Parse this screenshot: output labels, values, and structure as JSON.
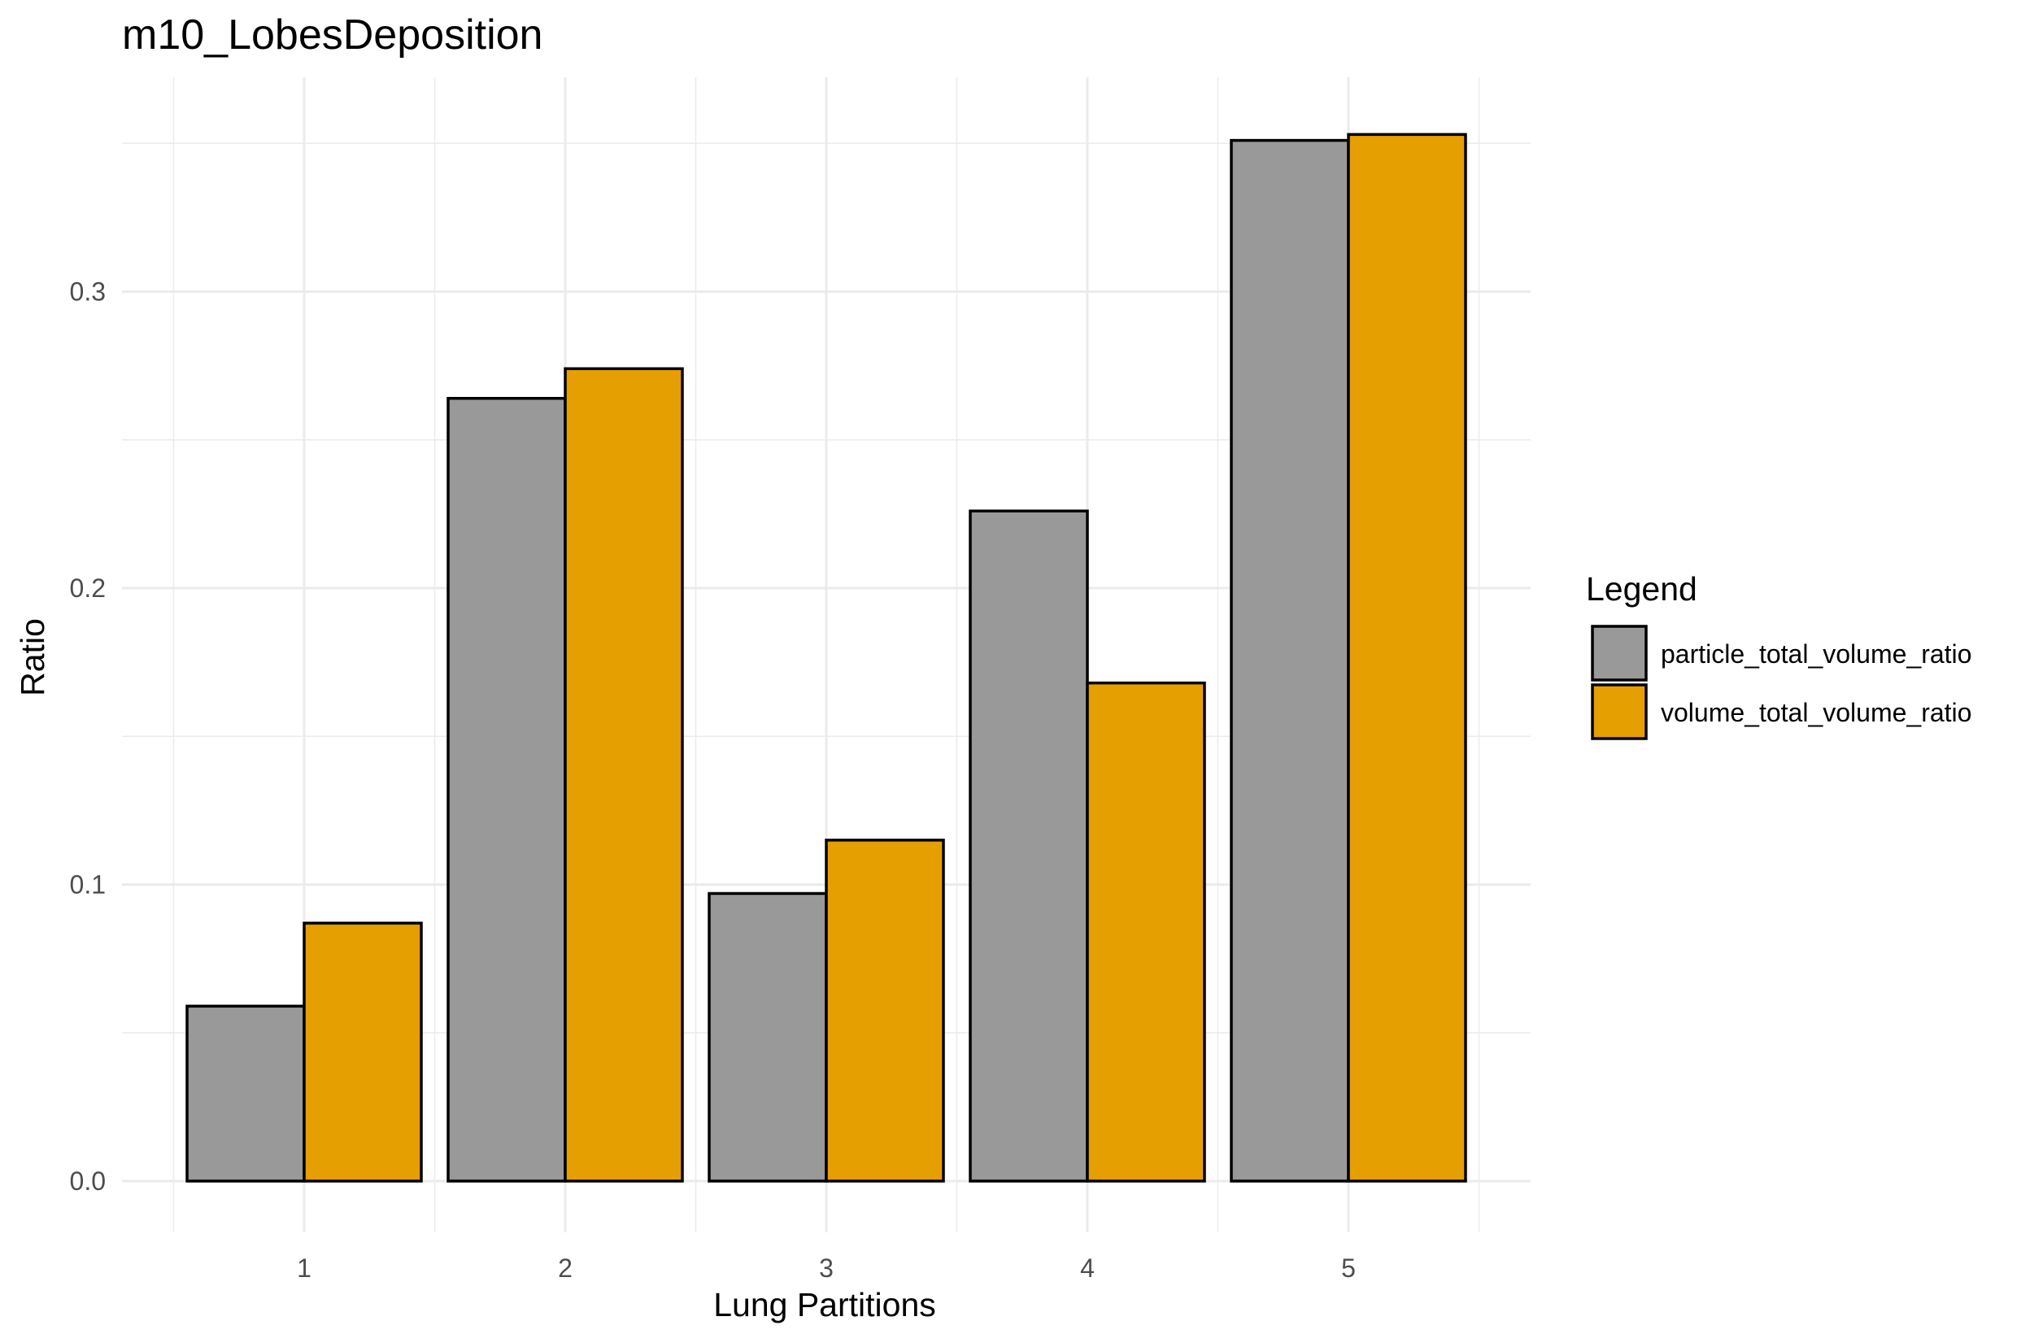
{
  "chart_data": {
    "type": "bar",
    "title": "m10_LobesDeposition",
    "xlabel": "Lung Partitions",
    "ylabel": "Ratio",
    "categories": [
      "1",
      "2",
      "3",
      "4",
      "5"
    ],
    "series": [
      {
        "name": "particle_total_volume_ratio",
        "color": "#999999",
        "values": [
          0.059,
          0.264,
          0.097,
          0.226,
          0.351
        ]
      },
      {
        "name": "volume_total_volume_ratio",
        "color": "#E69F00",
        "values": [
          0.087,
          0.274,
          0.115,
          0.168,
          0.353
        ]
      }
    ],
    "ylim": [
      0,
      0.35
    ],
    "yticks": [
      "0.0",
      "0.1",
      "0.2",
      "0.3"
    ],
    "legend": {
      "title": "Legend",
      "position": "right"
    },
    "grid": true,
    "bar_mode": "dodge"
  }
}
